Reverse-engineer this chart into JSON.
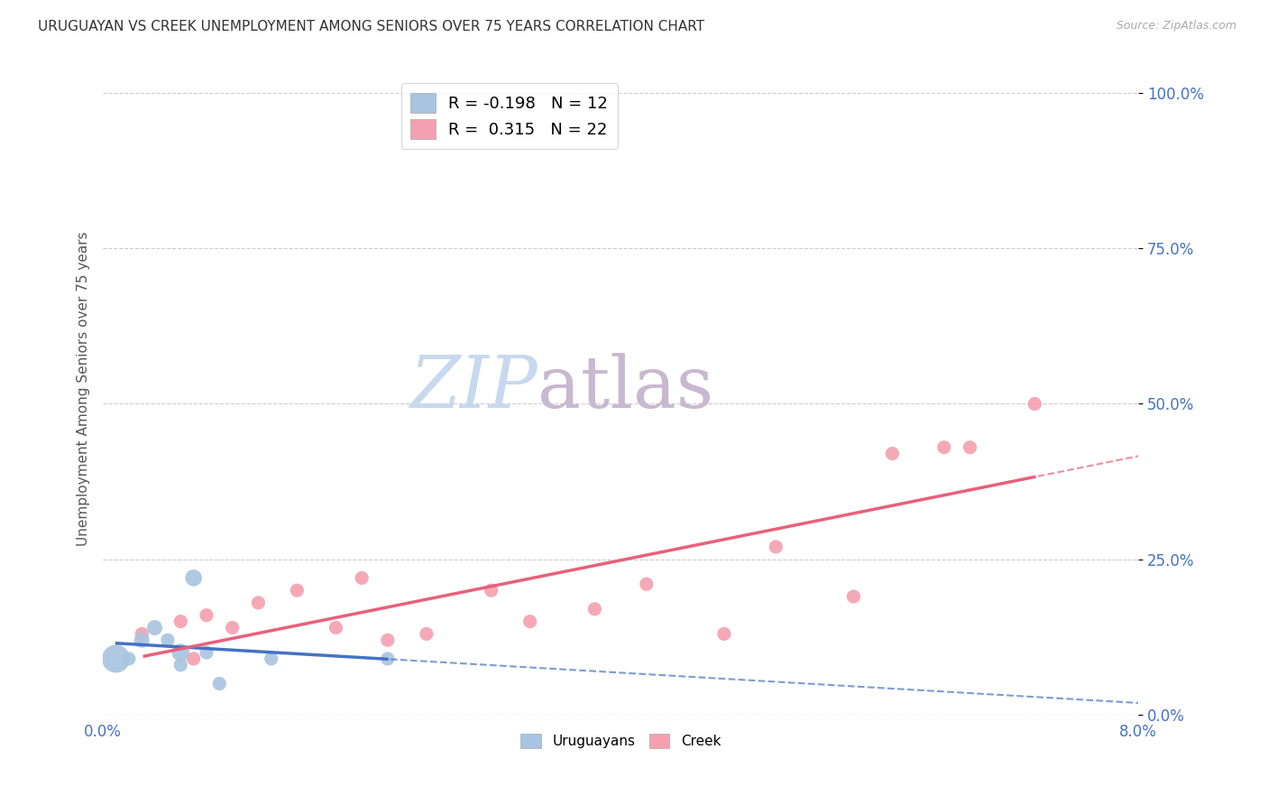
{
  "title": "URUGUAYAN VS CREEK UNEMPLOYMENT AMONG SENIORS OVER 75 YEARS CORRELATION CHART",
  "source": "Source: ZipAtlas.com",
  "ylabel": "Unemployment Among Seniors over 75 years",
  "ytick_labels": [
    "0.0%",
    "25.0%",
    "50.0%",
    "75.0%",
    "100.0%"
  ],
  "ytick_values": [
    0.0,
    0.25,
    0.5,
    0.75,
    1.0
  ],
  "xlim": [
    0.0,
    0.08
  ],
  "ylim": [
    0.0,
    1.05
  ],
  "legend_uruguayan_R": "-0.198",
  "legend_uruguayan_N": "12",
  "legend_creek_R": "0.315",
  "legend_creek_N": "22",
  "uruguayan_color": "#a8c4e0",
  "creek_color": "#f4a0b0",
  "uruguayan_line_color": "#4472c4",
  "creek_line_color": "#e8607a",
  "uruguayan_x": [
    0.001,
    0.002,
    0.003,
    0.004,
    0.005,
    0.006,
    0.006,
    0.007,
    0.008,
    0.009,
    0.013,
    0.022
  ],
  "uruguayan_y": [
    0.09,
    0.09,
    0.12,
    0.14,
    0.12,
    0.1,
    0.08,
    0.22,
    0.1,
    0.05,
    0.09,
    0.09
  ],
  "uruguayan_size": [
    500,
    120,
    150,
    150,
    120,
    200,
    120,
    180,
    120,
    120,
    120,
    120
  ],
  "creek_x": [
    0.003,
    0.006,
    0.007,
    0.008,
    0.01,
    0.012,
    0.015,
    0.018,
    0.02,
    0.022,
    0.025,
    0.03,
    0.033,
    0.038,
    0.042,
    0.048,
    0.052,
    0.058,
    0.061,
    0.065,
    0.067,
    0.072
  ],
  "creek_y": [
    0.13,
    0.15,
    0.09,
    0.16,
    0.14,
    0.18,
    0.2,
    0.14,
    0.22,
    0.12,
    0.13,
    0.2,
    0.15,
    0.17,
    0.21,
    0.13,
    0.27,
    0.19,
    0.42,
    0.43,
    0.43,
    0.5
  ],
  "creek_size": [
    120,
    120,
    120,
    120,
    120,
    120,
    120,
    120,
    120,
    120,
    120,
    120,
    120,
    120,
    120,
    120,
    120,
    120,
    120,
    120,
    120,
    120
  ],
  "background_color": "#ffffff",
  "watermark_zip": "ZIP",
  "watermark_atlas": "atlas",
  "watermark_color_zip": "#c8d8ee",
  "watermark_color_atlas": "#c8b8d0"
}
